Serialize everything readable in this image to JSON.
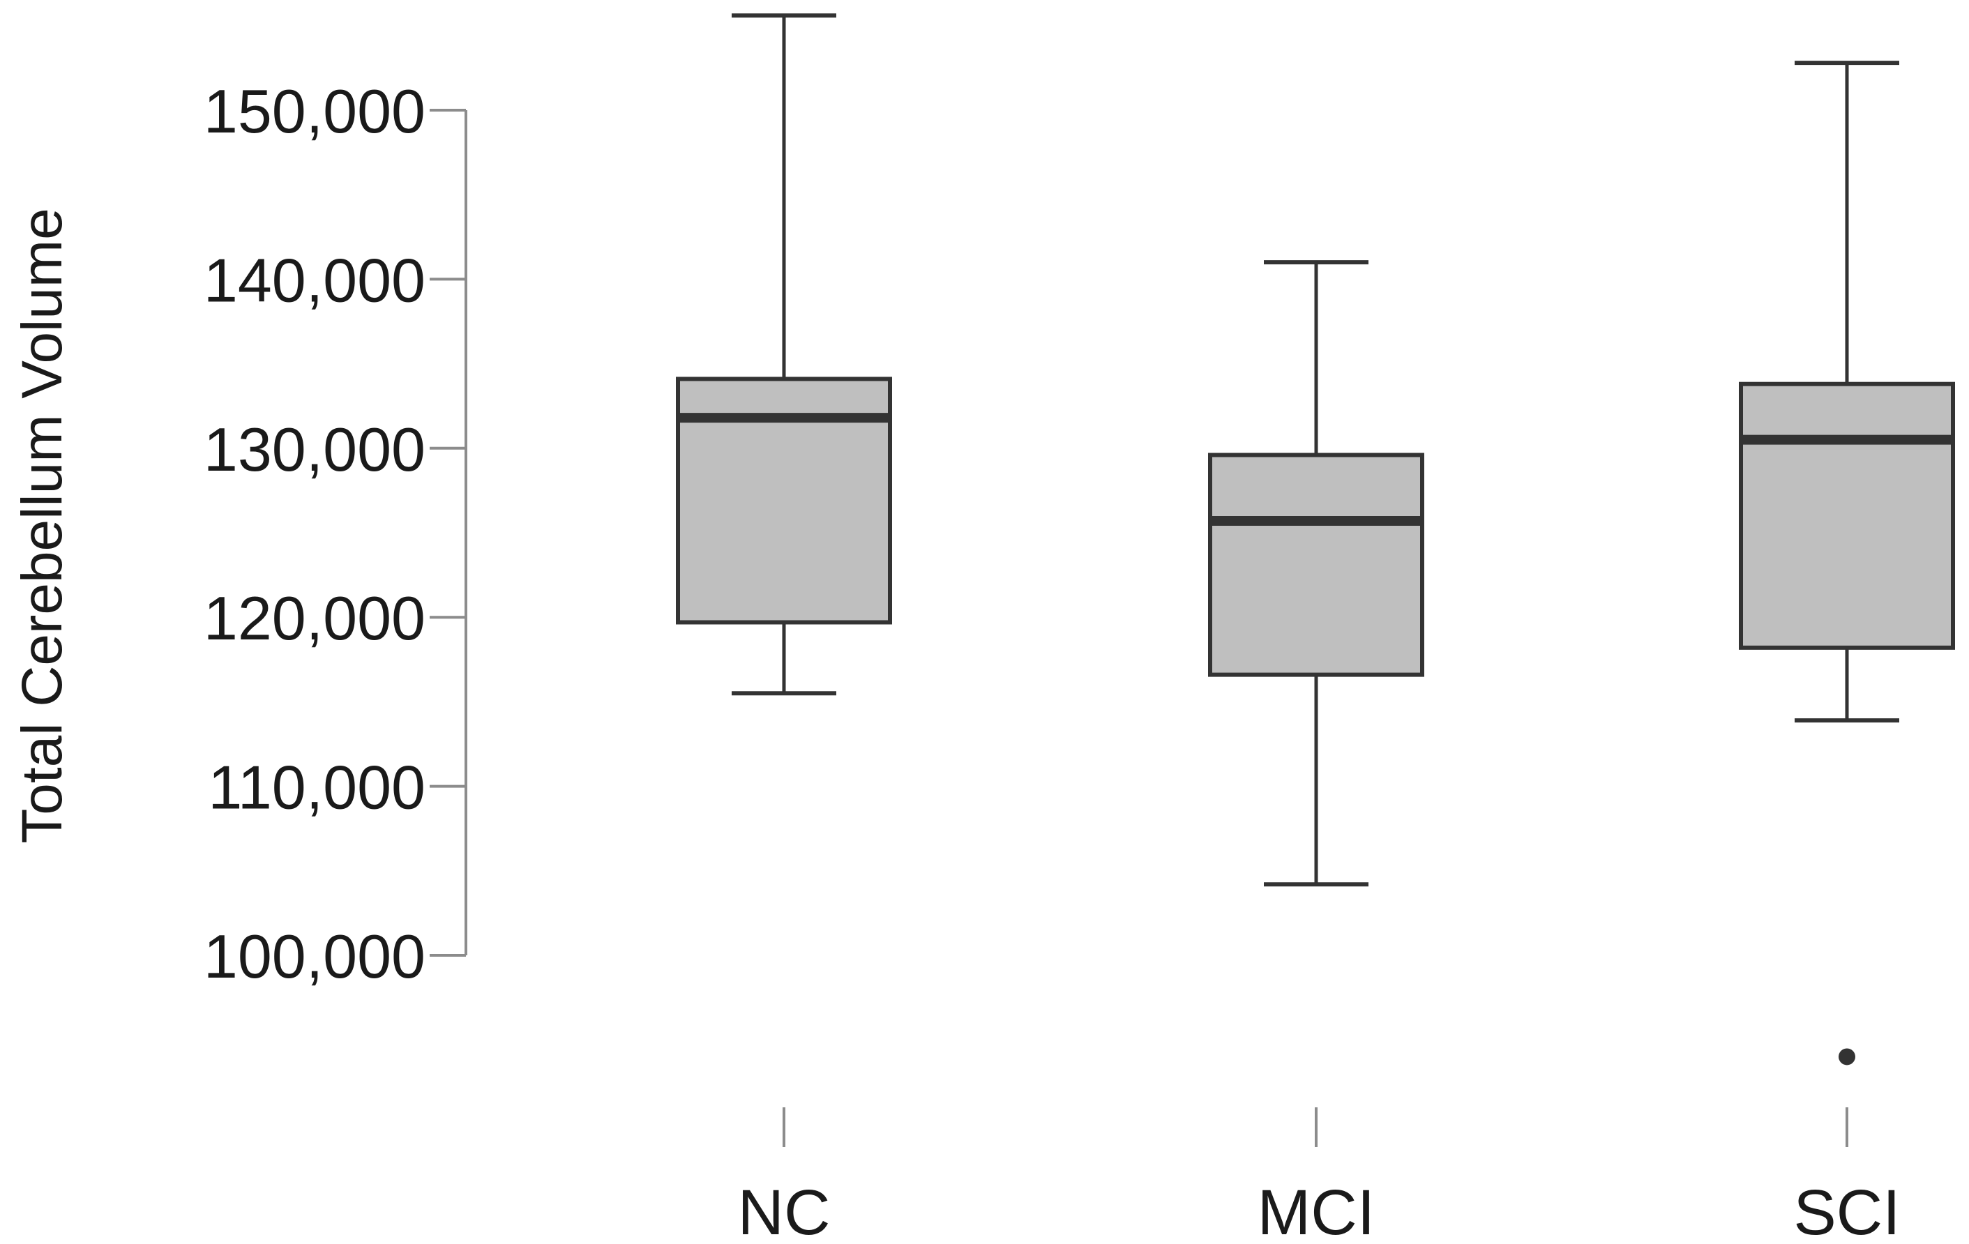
{
  "chart_data": {
    "type": "box",
    "title": "",
    "xlabel": "",
    "ylabel": "Total Cerebellum Volume",
    "ylim": [
      93000,
      157000
    ],
    "y_ticks": [
      100000,
      110000,
      120000,
      130000,
      140000,
      150000
    ],
    "y_tick_labels": [
      "100,000",
      "110,000",
      "120,000",
      "130,000",
      "140,000",
      "150,000"
    ],
    "categories": [
      "NC",
      "MCI",
      "SCI"
    ],
    "grid": false,
    "legend": "none",
    "box_fill": "#bfbfbf",
    "box_stroke": "#333333",
    "boxes": [
      {
        "category": "NC",
        "whisker_low": 115500,
        "q1": 119700,
        "median": 131800,
        "q3": 134100,
        "whisker_high": 155600,
        "outliers": []
      },
      {
        "category": "MCI",
        "whisker_low": 104200,
        "q1": 116600,
        "median": 125700,
        "q3": 129600,
        "whisker_high": 141000,
        "outliers": []
      },
      {
        "category": "SCI",
        "whisker_low": 113900,
        "q1": 118200,
        "median": 130500,
        "q3": 133800,
        "whisker_high": 152800,
        "outliers": [
          94000
        ]
      }
    ]
  }
}
